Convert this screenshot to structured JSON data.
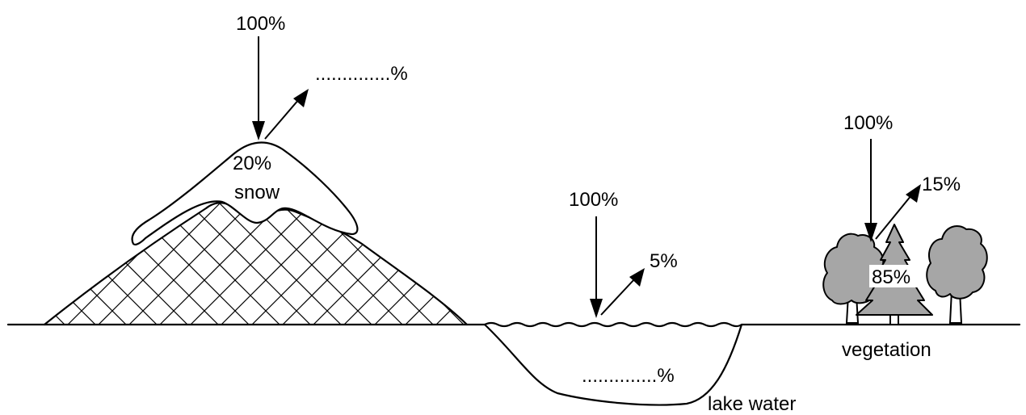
{
  "snow": {
    "incoming": "100%",
    "reflected": "..............%",
    "absorbed": "20%",
    "name": "snow"
  },
  "lake": {
    "incoming": "100%",
    "reflected": "5%",
    "absorbed": "..............%",
    "name": "lake water"
  },
  "vegetation": {
    "incoming": "100%",
    "reflected": "15%",
    "absorbed": "85%",
    "name": "vegetation"
  }
}
